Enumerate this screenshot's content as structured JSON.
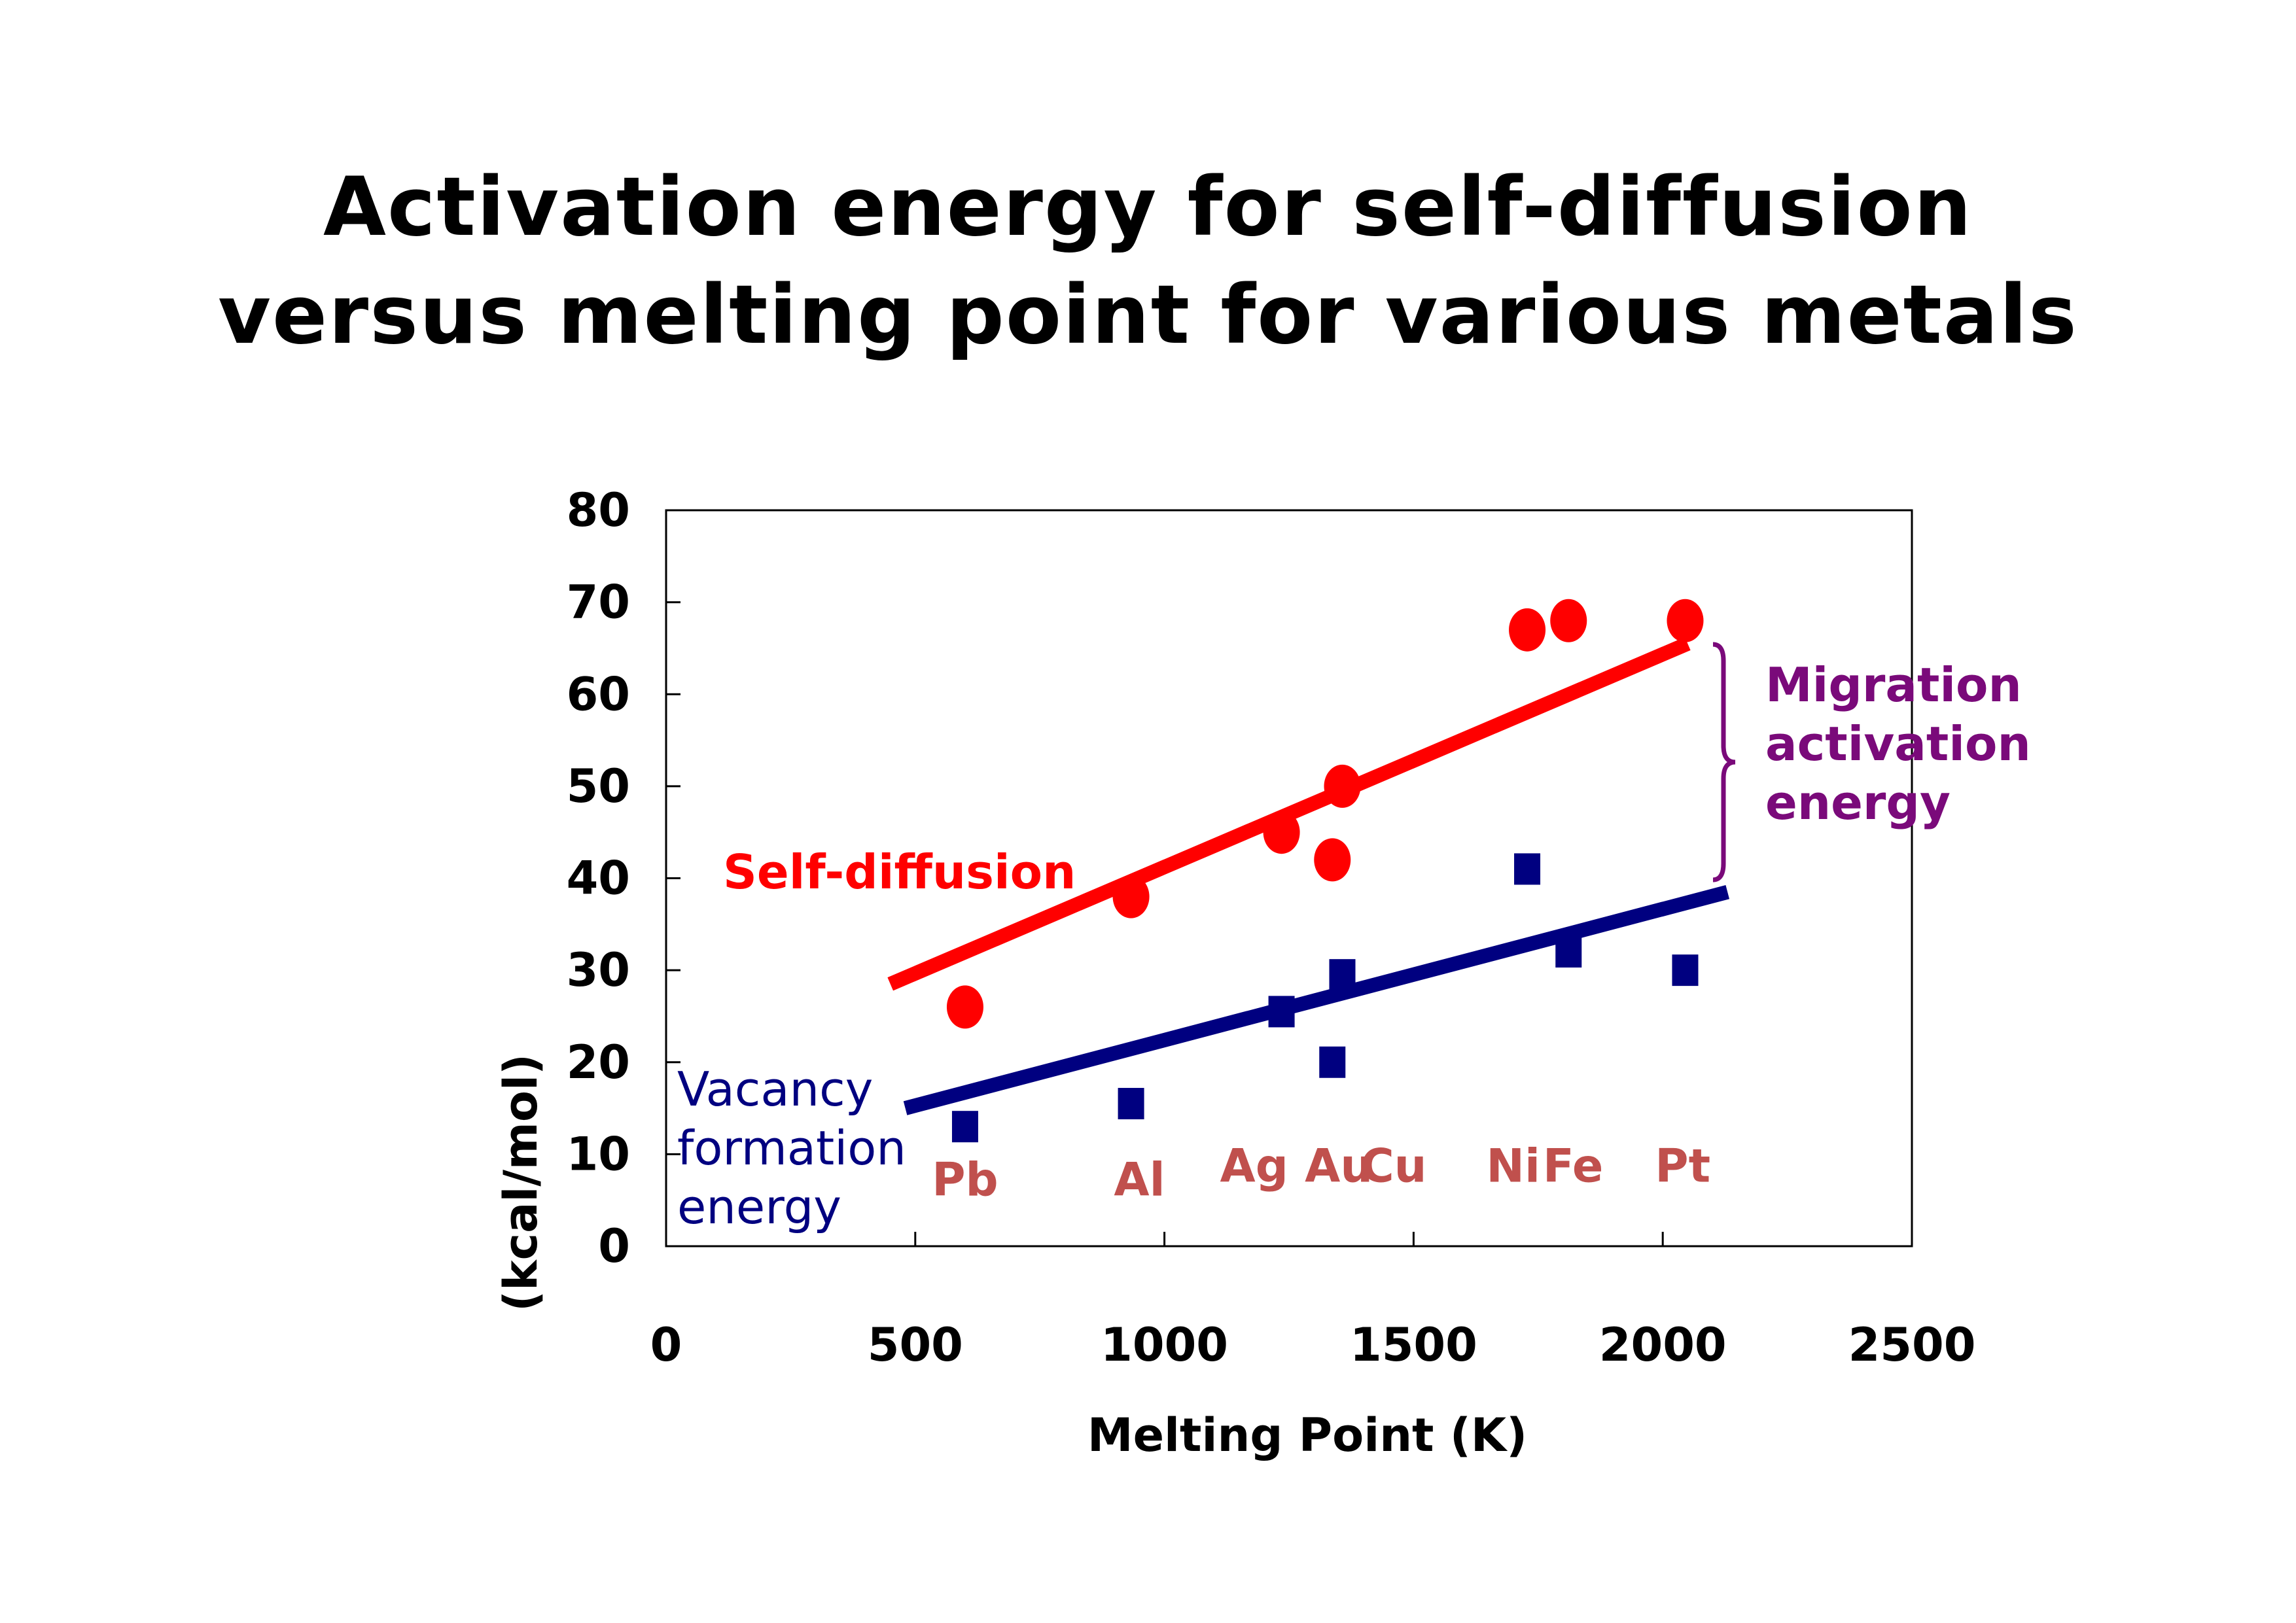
{
  "title": {
    "line1": "Activation energy for self-diffusion",
    "line2": "versus melting point for various metals"
  },
  "colors": {
    "self_diffusion": "#ff0000",
    "vacancy": "#000080",
    "migration": "#7a0a7a",
    "metal_label": "#c0504d",
    "axis": "#000000"
  },
  "chart_data": {
    "type": "scatter",
    "xlabel": "Melting Point (K)",
    "ylabel": "(kcal/mol)",
    "xlim": [
      0,
      2500
    ],
    "ylim": [
      0,
      80
    ],
    "xticks": [
      0,
      500,
      1000,
      1500,
      2000,
      2500
    ],
    "yticks": [
      0,
      10,
      20,
      30,
      40,
      50,
      60,
      70,
      80
    ],
    "series": [
      {
        "name": "Self-diffusion",
        "marker": "circle",
        "points": [
          {
            "x": 600,
            "y": 26
          },
          {
            "x": 933,
            "y": 38
          },
          {
            "x": 1235,
            "y": 45
          },
          {
            "x": 1337,
            "y": 42
          },
          {
            "x": 1357,
            "y": 50
          },
          {
            "x": 1728,
            "y": 67
          },
          {
            "x": 1811,
            "y": 68
          },
          {
            "x": 2045,
            "y": 68
          }
        ],
        "trendline": {
          "x": [
            450,
            2050
          ],
          "y": [
            28.5,
            65.5
          ]
        }
      },
      {
        "name": "Vacancy formation energy",
        "label_lines": [
          "Vacancy",
          "formation",
          "energy"
        ],
        "marker": "square",
        "points": [
          {
            "x": 600,
            "y": 13
          },
          {
            "x": 933,
            "y": 15.5
          },
          {
            "x": 1235,
            "y": 25.5
          },
          {
            "x": 1337,
            "y": 20
          },
          {
            "x": 1357,
            "y": 29.5
          },
          {
            "x": 1728,
            "y": 41
          },
          {
            "x": 1811,
            "y": 32
          },
          {
            "x": 2045,
            "y": 30
          }
        ],
        "trendline": {
          "x": [
            480,
            2130
          ],
          "y": [
            15,
            38.5
          ]
        }
      }
    ],
    "metal_labels": [
      {
        "text": "Pb",
        "x": 600,
        "y": 5.5
      },
      {
        "text": "Al",
        "x": 950,
        "y": 5.5
      },
      {
        "text": "Ag",
        "x": 1180,
        "y": 7
      },
      {
        "text": "Au",
        "x": 1350,
        "y": 7
      },
      {
        "text": "Cu",
        "x": 1460,
        "y": 7
      },
      {
        "text": "Ni",
        "x": 1700,
        "y": 7
      },
      {
        "text": "Fe",
        "x": 1820,
        "y": 7
      },
      {
        "text": "Pt",
        "x": 2040,
        "y": 7
      }
    ],
    "annotations": {
      "self_diffusion_label": "Self-diffusion",
      "migration_label": [
        "Migration",
        "activation",
        "energy"
      ]
    }
  }
}
